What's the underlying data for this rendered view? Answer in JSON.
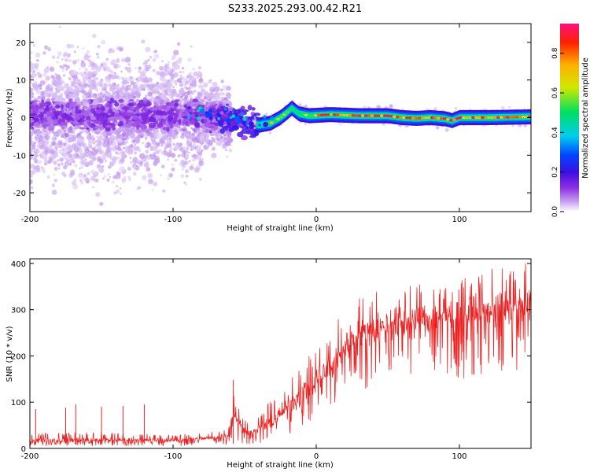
{
  "title": "S233.2025.293.00.42.R21",
  "colors": {
    "snr_line": "#ee2222",
    "frame": "#000000",
    "colormap": [
      "#ffffff",
      "#c9a6f0",
      "#8a2be2",
      "#3b10e0",
      "#0044ff",
      "#00ccee",
      "#00e060",
      "#d0e800",
      "#ffb000",
      "#ff2000",
      "#ff1080"
    ]
  },
  "chart_data": [
    {
      "type": "heatmap",
      "name": "spectrogram",
      "xlabel": "Height of straight line (km)",
      "ylabel": "Frequency (Hz)",
      "xlim": [
        -200,
        150
      ],
      "ylim": [
        -25,
        25
      ],
      "x_ticks": [
        -200,
        -100,
        0,
        100
      ],
      "y_ticks": [
        -20,
        -10,
        0,
        10,
        20
      ],
      "colorbar": {
        "label": "Normalized spectral amplitude",
        "range": [
          0.0,
          0.95
        ],
        "ticks": [
          0.0,
          0.2,
          0.4,
          0.6,
          0.8
        ]
      },
      "frequency_trace": [
        {
          "x": -200,
          "y": 1.0
        },
        {
          "x": -160,
          "y": 0.5
        },
        {
          "x": -120,
          "y": 1.0
        },
        {
          "x": -80,
          "y": 0.5
        },
        {
          "x": -60,
          "y": 0.0
        },
        {
          "x": -50,
          "y": -1.0
        },
        {
          "x": -40,
          "y": -2.0
        },
        {
          "x": -32,
          "y": -1.5
        },
        {
          "x": -25,
          "y": 0.0
        },
        {
          "x": -20,
          "y": 1.5
        },
        {
          "x": -17,
          "y": 2.5
        },
        {
          "x": -12,
          "y": 1.0
        },
        {
          "x": -5,
          "y": 0.5
        },
        {
          "x": 10,
          "y": 0.8
        },
        {
          "x": 30,
          "y": 0.5
        },
        {
          "x": 50,
          "y": 0.5
        },
        {
          "x": 60,
          "y": 0.0
        },
        {
          "x": 70,
          "y": -0.2
        },
        {
          "x": 80,
          "y": 0.0
        },
        {
          "x": 90,
          "y": -0.3
        },
        {
          "x": 95,
          "y": -0.8
        },
        {
          "x": 100,
          "y": 0.0
        },
        {
          "x": 120,
          "y": 0.0
        },
        {
          "x": 150,
          "y": 0.2
        }
      ]
    },
    {
      "type": "line",
      "name": "snr",
      "xlabel": "Height of straight line (km)",
      "ylabel": "SNR (10 * v/v)",
      "xlim": [
        -200,
        150
      ],
      "ylim": [
        0,
        410
      ],
      "x_ticks": [
        -200,
        -100,
        0,
        100
      ],
      "y_ticks": [
        0,
        100,
        200,
        300,
        400
      ],
      "envelope": [
        {
          "x": -200,
          "low": 5,
          "mid": 18,
          "high": 35
        },
        {
          "x": -150,
          "low": 5,
          "mid": 18,
          "high": 35
        },
        {
          "x": -100,
          "low": 5,
          "mid": 18,
          "high": 30
        },
        {
          "x": -75,
          "low": 5,
          "mid": 22,
          "high": 35
        },
        {
          "x": -62,
          "low": 5,
          "mid": 28,
          "high": 45
        },
        {
          "x": -57,
          "low": 15,
          "mid": 80,
          "high": 140
        },
        {
          "x": -52,
          "low": 10,
          "mid": 40,
          "high": 75
        },
        {
          "x": -45,
          "low": 8,
          "mid": 32,
          "high": 60
        },
        {
          "x": -30,
          "low": 15,
          "mid": 60,
          "high": 110
        },
        {
          "x": -10,
          "low": 40,
          "mid": 120,
          "high": 190
        },
        {
          "x": 10,
          "low": 70,
          "mid": 175,
          "high": 260
        },
        {
          "x": 25,
          "low": 120,
          "mid": 240,
          "high": 320
        },
        {
          "x": 50,
          "low": 140,
          "mid": 270,
          "high": 350
        },
        {
          "x": 75,
          "low": 150,
          "mid": 280,
          "high": 355
        },
        {
          "x": 100,
          "low": 150,
          "mid": 290,
          "high": 370
        },
        {
          "x": 125,
          "low": 160,
          "mid": 300,
          "high": 395
        },
        {
          "x": 150,
          "low": 170,
          "mid": 310,
          "high": 405
        }
      ],
      "spikes": [
        {
          "x": -196,
          "y": 85
        },
        {
          "x": -175,
          "y": 88
        },
        {
          "x": -168,
          "y": 95
        },
        {
          "x": -150,
          "y": 90
        },
        {
          "x": -135,
          "y": 92
        },
        {
          "x": -120,
          "y": 95
        },
        {
          "x": -58,
          "y": 148
        }
      ]
    }
  ]
}
